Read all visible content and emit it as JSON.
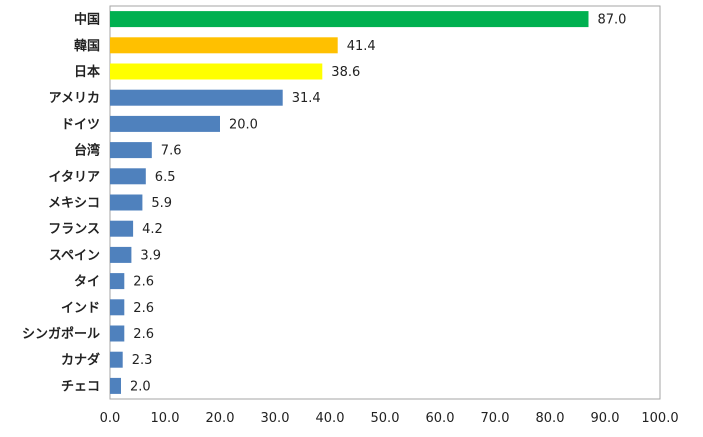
{
  "chart_data": {
    "type": "bar",
    "orientation": "horizontal",
    "categories": [
      "中国",
      "韓国",
      "日本",
      "アメリカ",
      "ドイツ",
      "台湾",
      "イタリア",
      "メキシコ",
      "フランス",
      "スペイン",
      "タイ",
      "インド",
      "シンガポール",
      "カナダ",
      "チェコ"
    ],
    "values": [
      87.0,
      41.4,
      38.6,
      31.4,
      20.0,
      7.6,
      6.5,
      5.9,
      4.2,
      3.9,
      2.6,
      2.6,
      2.6,
      2.3,
      2.0
    ],
    "value_labels": [
      "87.0",
      "41.4",
      "38.6",
      "31.4",
      "20.0",
      "7.6",
      "6.5",
      "5.9",
      "4.2",
      "3.9",
      "2.6",
      "2.6",
      "2.6",
      "2.3",
      "2.0"
    ],
    "bar_colors": [
      "#00b050",
      "#ffc000",
      "#ffff00",
      "#4f81bd",
      "#4f81bd",
      "#4f81bd",
      "#4f81bd",
      "#4f81bd",
      "#4f81bd",
      "#4f81bd",
      "#4f81bd",
      "#4f81bd",
      "#4f81bd",
      "#4f81bd",
      "#4f81bd"
    ],
    "xlim": [
      0,
      100
    ],
    "x_ticks": [
      "0.0",
      "10.0",
      "20.0",
      "30.0",
      "40.0",
      "50.0",
      "60.0",
      "70.0",
      "80.0",
      "90.0",
      "100.0"
    ],
    "title": "",
    "xlabel": "",
    "ylabel": "",
    "grid": false,
    "legend": "none"
  }
}
